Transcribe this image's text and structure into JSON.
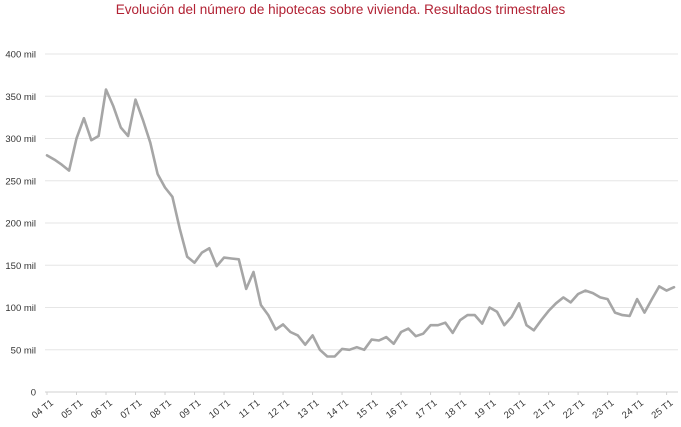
{
  "chart_data": {
    "type": "line",
    "title": "Evolución del número de hipotecas sobre vivienda. Resultados trimestrales",
    "xlabel": "",
    "ylabel": "",
    "ylim": [
      0,
      400000
    ],
    "y_ticks": [
      {
        "value": 0,
        "label": "0"
      },
      {
        "value": 50000,
        "label": "50 mil"
      },
      {
        "value": 100000,
        "label": "100 mil"
      },
      {
        "value": 150000,
        "label": "150 mil"
      },
      {
        "value": 200000,
        "label": "200 mil"
      },
      {
        "value": 250000,
        "label": "250 mil"
      },
      {
        "value": 300000,
        "label": "300 mil"
      },
      {
        "value": 350000,
        "label": "350 mil"
      },
      {
        "value": 400000,
        "label": "400 mil"
      }
    ],
    "x_ticks": [
      "04 T1",
      "05 T1",
      "06 T1",
      "07 T1",
      "08 T1",
      "09 T1",
      "10 T1",
      "11 T1",
      "12 T1",
      "13 T1",
      "14 T1",
      "15 T1",
      "16 T1",
      "17 T1",
      "18 T1",
      "19 T1",
      "20 T1",
      "21 T1",
      "22 T1",
      "23 T1",
      "24 T1",
      "25 T1"
    ],
    "grid": true,
    "series_color": "#a6a6a6",
    "series": [
      {
        "values": [
          280000,
          275000,
          269000,
          262000,
          300000,
          324000,
          298000,
          303000,
          358000,
          338000,
          313000,
          303000,
          346000,
          322000,
          295000,
          258000,
          242000,
          231000,
          193000,
          160000,
          153000,
          165000,
          170000,
          149000,
          159000,
          158000,
          157000,
          122000,
          142000,
          103000,
          91000,
          74000,
          80000,
          71000,
          67000,
          56000,
          67000,
          50000,
          42000,
          42000,
          51000,
          50000,
          53000,
          50000,
          62000,
          61000,
          65000,
          57000,
          71000,
          75000,
          66000,
          69000,
          79000,
          79000,
          82000,
          70000,
          85000,
          91000,
          91000,
          81000,
          100000,
          95000,
          79000,
          89000,
          105000,
          79000,
          73000,
          85000,
          96000,
          105000,
          112000,
          106000,
          116000,
          120000,
          117000,
          112000,
          110000,
          94000,
          91000,
          90000,
          110000,
          94000,
          110000,
          125000,
          120000,
          124000
        ]
      }
    ]
  }
}
